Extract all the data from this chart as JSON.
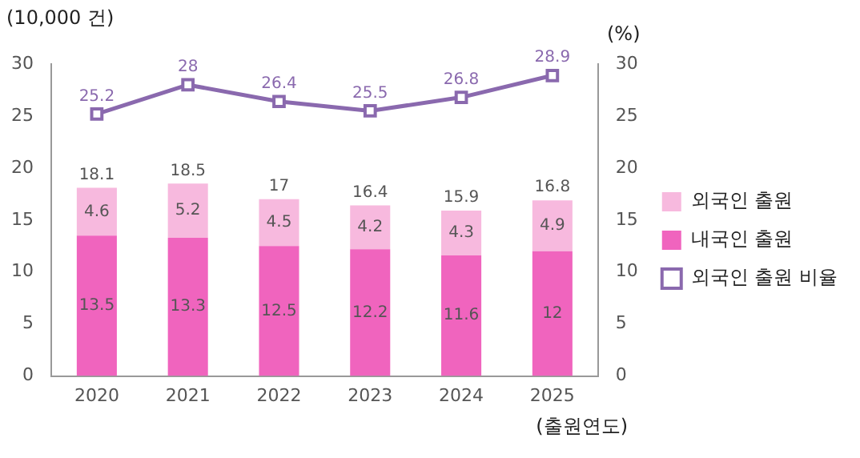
{
  "chart_data": {
    "type": "bar",
    "stacked": true,
    "categories": [
      "2020",
      "2021",
      "2022",
      "2023",
      "2024",
      "2025"
    ],
    "series": [
      {
        "name": "내국인 출원",
        "color": "#f064be",
        "values": [
          13.5,
          13.3,
          12.5,
          12.2,
          11.6,
          12
        ]
      },
      {
        "name": "외국인 출원",
        "color": "#f7b9de",
        "values": [
          4.6,
          5.2,
          4.5,
          4.2,
          4.3,
          4.9
        ]
      },
      {
        "name": "외국인 출원 비율",
        "type": "line",
        "axis": "y2",
        "color": "#8a69ae",
        "marker": "square",
        "values": [
          25.2,
          28,
          26.4,
          25.5,
          26.8,
          28.9
        ]
      }
    ],
    "totals": [
      "18.1",
      "18.5",
      "17",
      "16.4",
      "15.9",
      "16.8"
    ],
    "data_labels": true,
    "ylabel": "(10,000 건)",
    "y2label": "(%)",
    "xlabel": "(출원연도)",
    "ylim": [
      0,
      30
    ],
    "yticks": [
      0,
      5,
      10,
      15,
      20,
      25,
      30
    ],
    "y2lim": [
      0,
      30
    ],
    "y2ticks": [
      0,
      5,
      10,
      15,
      20,
      25,
      30
    ],
    "grid": false,
    "legend": "right"
  }
}
